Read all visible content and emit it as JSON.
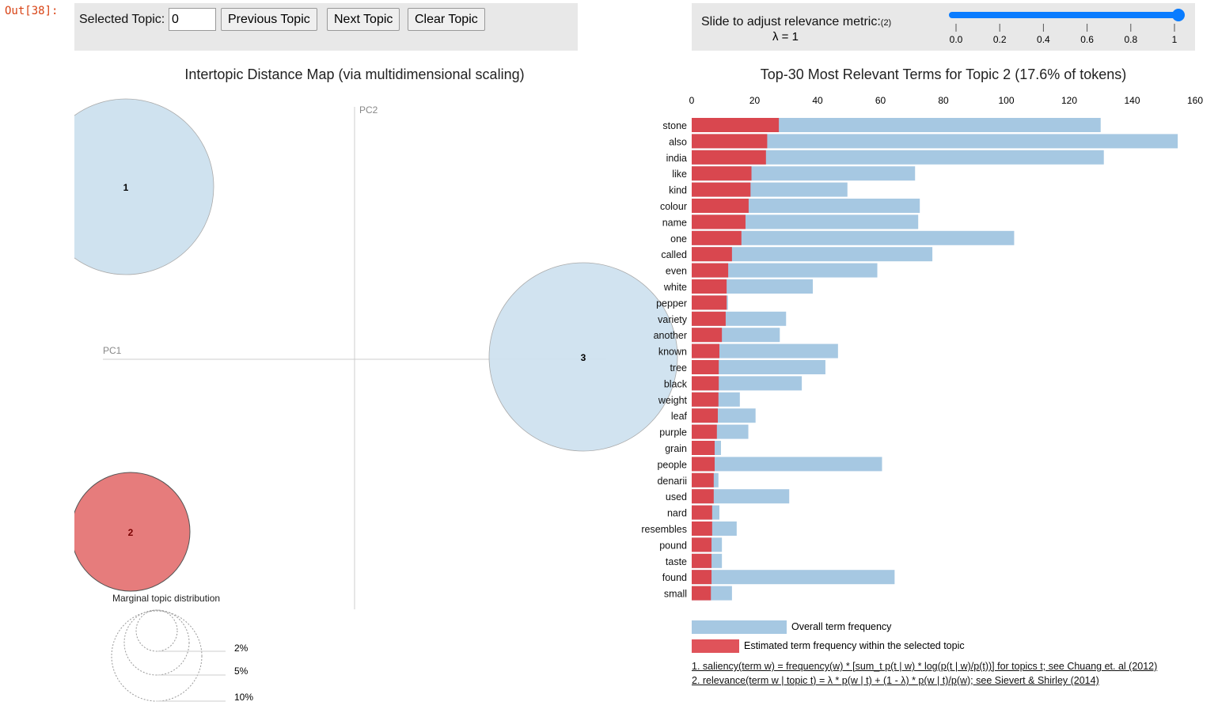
{
  "prompt": "Out[38]:",
  "controls": {
    "selected_topic_label": "Selected Topic:",
    "selected_topic_value": "0",
    "prev": "Previous Topic",
    "next": "Next Topic",
    "clear": "Clear Topic"
  },
  "slider": {
    "label": "Slide to adjust relevance metric:",
    "footnote_ref": "(2)",
    "lambda_text": "λ = 1",
    "value": 1,
    "ticks": [
      "0.0",
      "0.2",
      "0.4",
      "0.6",
      "0.8",
      "1"
    ],
    "color": "#0a7cff"
  },
  "mds": {
    "title": "Intertopic Distance Map (via multidimensional scaling)",
    "pc1": "PC1",
    "pc2": "PC2",
    "topics": [
      {
        "id": "1",
        "selected": false
      },
      {
        "id": "2",
        "selected": true
      },
      {
        "id": "3",
        "selected": false
      }
    ],
    "marginal_title": "Marginal topic distribution",
    "marginal_labels": [
      "2%",
      "5%",
      "10%"
    ]
  },
  "chart_data": {
    "type": "bar",
    "orientation": "horizontal",
    "stacked_overlay": true,
    "title": "Top-30 Most Relevant Terms for Topic 2 (17.6% of tokens)",
    "xlim": [
      0,
      160
    ],
    "xticks": [
      "0",
      "20",
      "40",
      "60",
      "80",
      "100",
      "120",
      "140",
      "160"
    ],
    "categories": [
      "stone",
      "also",
      "india",
      "like",
      "kind",
      "colour",
      "name",
      "one",
      "called",
      "even",
      "white",
      "pepper",
      "variety",
      "another",
      "known",
      "tree",
      "black",
      "weight",
      "leaf",
      "purple",
      "grain",
      "people",
      "denarii",
      "used",
      "nard",
      "resembles",
      "pound",
      "taste",
      "found",
      "small"
    ],
    "series": [
      {
        "name": "Overall term frequency",
        "color": "#a6c8e2",
        "values": [
          130,
          154.5,
          131,
          71,
          49.5,
          72.5,
          72,
          102.5,
          76.5,
          59,
          38.5,
          11.5,
          30,
          28,
          46.5,
          42.5,
          35,
          15.3,
          20.3,
          18,
          9.3,
          60.5,
          8.5,
          31,
          8.8,
          14.3,
          9.6,
          9.6,
          64.5,
          12.8
        ]
      },
      {
        "name": "Estimated term frequency within the selected topic",
        "color": "#d9474f",
        "values": [
          27.7,
          24,
          23.6,
          19,
          18.7,
          18.1,
          17.1,
          15.8,
          12.8,
          11.6,
          11.1,
          11.1,
          10.8,
          9.6,
          8.8,
          8.6,
          8.6,
          8.5,
          8.3,
          8,
          7.3,
          7.3,
          7,
          7,
          6.5,
          6.5,
          6.3,
          6.3,
          6.3,
          6.1
        ]
      }
    ]
  },
  "footnotes": [
    "1. saliency(term w) = frequency(w) * [sum_t p(t | w) * log(p(t | w)/p(t))] for topics t; see Chuang et. al (2012)",
    "2. relevance(term w | topic t) = λ * p(w | t) + (1 - λ) * p(w | t)/p(w); see Sievert & Shirley (2014)"
  ]
}
